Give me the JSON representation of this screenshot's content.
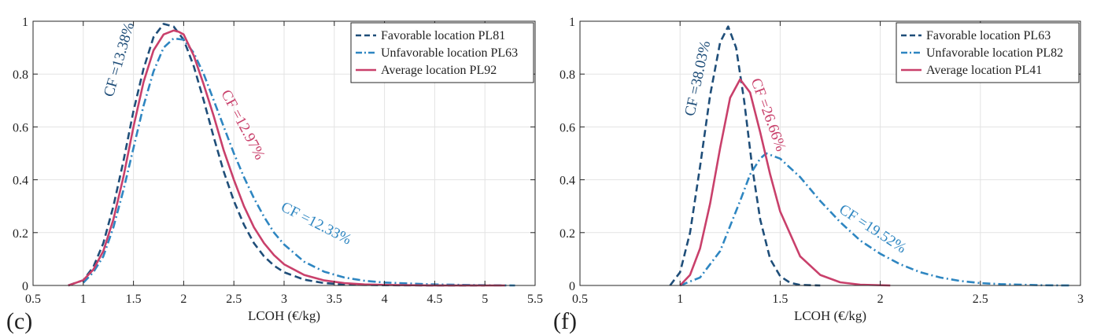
{
  "chart_data": [
    {
      "type": "line",
      "panel_label": "(c)",
      "xlabel": "LCOH (€/kg)",
      "ylabel": "",
      "xlim": [
        0.5,
        5.5
      ],
      "ylim": [
        0,
        1
      ],
      "xticks": [
        0.5,
        1,
        1.5,
        2,
        2.5,
        3,
        3.5,
        4,
        4.5,
        5,
        5.5
      ],
      "xtick_labels": [
        "0.5",
        "1",
        "1.5",
        "2",
        "2.5",
        "3",
        "3.5",
        "4",
        "4.5",
        "5",
        "5.5"
      ],
      "yticks": [
        0,
        0.2,
        0.4,
        0.6,
        0.8,
        1
      ],
      "ytick_labels": [
        "0",
        "0.2",
        "0.4",
        "0.6",
        "0.8",
        "1"
      ],
      "grid": true,
      "legend_position": "top-right",
      "series": [
        {
          "name": "Favorable location PL81",
          "color": "#1f4e79",
          "dash": "dashed",
          "x": [
            0.85,
            1.0,
            1.1,
            1.2,
            1.3,
            1.4,
            1.5,
            1.6,
            1.7,
            1.8,
            1.9,
            2.0,
            2.1,
            2.2,
            2.3,
            2.4,
            2.5,
            2.6,
            2.7,
            2.8,
            2.9,
            3.0,
            3.2,
            3.4,
            3.6,
            3.8,
            4.0,
            4.5,
            5.0
          ],
          "y": [
            0.0,
            0.02,
            0.07,
            0.16,
            0.3,
            0.47,
            0.66,
            0.82,
            0.94,
            0.99,
            0.98,
            0.93,
            0.83,
            0.7,
            0.56,
            0.43,
            0.32,
            0.23,
            0.16,
            0.11,
            0.075,
            0.05,
            0.022,
            0.009,
            0.004,
            0.002,
            0.001,
            0.0,
            0.0
          ]
        },
        {
          "name": "Unfavorable location PL63",
          "color": "#2e86c1",
          "dash": "dashdot",
          "x": [
            1.0,
            1.1,
            1.2,
            1.3,
            1.4,
            1.5,
            1.6,
            1.7,
            1.8,
            1.9,
            2.0,
            2.1,
            2.2,
            2.3,
            2.4,
            2.5,
            2.6,
            2.7,
            2.8,
            2.9,
            3.0,
            3.2,
            3.4,
            3.6,
            3.8,
            4.0,
            4.5,
            5.0,
            5.3
          ],
          "y": [
            0.01,
            0.05,
            0.11,
            0.22,
            0.36,
            0.52,
            0.68,
            0.81,
            0.9,
            0.935,
            0.93,
            0.88,
            0.8,
            0.7,
            0.6,
            0.5,
            0.41,
            0.33,
            0.26,
            0.2,
            0.155,
            0.09,
            0.052,
            0.03,
            0.018,
            0.011,
            0.004,
            0.001,
            0.0
          ]
        },
        {
          "name": "Average location PL92",
          "color": "#c9406b",
          "dash": "solid",
          "x": [
            0.85,
            1.0,
            1.1,
            1.2,
            1.3,
            1.4,
            1.5,
            1.6,
            1.7,
            1.8,
            1.9,
            1.95,
            2.0,
            2.1,
            2.2,
            2.3,
            2.4,
            2.5,
            2.6,
            2.7,
            2.8,
            2.9,
            3.0,
            3.2,
            3.4,
            3.6,
            3.8,
            4.0,
            4.5,
            5.2
          ],
          "y": [
            0.0,
            0.02,
            0.06,
            0.13,
            0.25,
            0.41,
            0.6,
            0.77,
            0.89,
            0.95,
            0.965,
            0.96,
            0.95,
            0.87,
            0.76,
            0.64,
            0.51,
            0.4,
            0.3,
            0.22,
            0.16,
            0.115,
            0.08,
            0.04,
            0.019,
            0.009,
            0.004,
            0.002,
            0.0,
            0.0
          ]
        }
      ],
      "annotations": [
        {
          "text": "CF =13.38%",
          "x": 1.4,
          "y": 0.85,
          "angle": -74,
          "color": "#1f4e79"
        },
        {
          "text": "CF =12.97%",
          "x": 2.55,
          "y": 0.6,
          "angle": 62,
          "color": "#c9406b"
        },
        {
          "text": "CF =12.33%",
          "x": 3.3,
          "y": 0.22,
          "angle": 27,
          "color": "#2e86c1"
        }
      ]
    },
    {
      "type": "line",
      "panel_label": "(f)",
      "xlabel": "LCOH (€/kg)",
      "ylabel": "",
      "xlim": [
        0.5,
        3
      ],
      "ylim": [
        0,
        1
      ],
      "xticks": [
        0.5,
        1,
        1.5,
        2,
        2.5,
        3
      ],
      "xtick_labels": [
        "0.5",
        "1",
        "1.5",
        "2",
        "2.5",
        "3"
      ],
      "yticks": [
        0,
        0.2,
        0.4,
        0.6,
        0.8,
        1
      ],
      "ytick_labels": [
        "0",
        "0.2",
        "0.4",
        "0.6",
        "0.8",
        "1"
      ],
      "grid": true,
      "legend_position": "top-right",
      "series": [
        {
          "name": "Favorable location PL63",
          "color": "#1f4e79",
          "dash": "dashed",
          "x": [
            0.95,
            1.0,
            1.05,
            1.1,
            1.15,
            1.2,
            1.24,
            1.28,
            1.32,
            1.36,
            1.4,
            1.45,
            1.5,
            1.55,
            1.6,
            1.7
          ],
          "y": [
            0.0,
            0.05,
            0.2,
            0.45,
            0.72,
            0.92,
            0.98,
            0.9,
            0.7,
            0.45,
            0.25,
            0.1,
            0.035,
            0.01,
            0.002,
            0.0
          ]
        },
        {
          "name": "Unfavorable location PL82",
          "color": "#2e86c1",
          "dash": "dashdot",
          "x": [
            1.0,
            1.1,
            1.2,
            1.3,
            1.35,
            1.4,
            1.43,
            1.5,
            1.6,
            1.7,
            1.8,
            1.9,
            2.0,
            2.1,
            2.2,
            2.3,
            2.4,
            2.5,
            2.6,
            2.8,
            2.95
          ],
          "y": [
            0.0,
            0.03,
            0.13,
            0.32,
            0.42,
            0.48,
            0.5,
            0.48,
            0.41,
            0.32,
            0.24,
            0.17,
            0.12,
            0.08,
            0.05,
            0.03,
            0.017,
            0.009,
            0.005,
            0.001,
            0.0
          ]
        },
        {
          "name": "Average location PL41",
          "color": "#c9406b",
          "dash": "solid",
          "x": [
            1.0,
            1.05,
            1.1,
            1.15,
            1.2,
            1.25,
            1.3,
            1.35,
            1.4,
            1.45,
            1.5,
            1.6,
            1.7,
            1.8,
            1.9,
            2.05
          ],
          "y": [
            0.0,
            0.04,
            0.14,
            0.31,
            0.52,
            0.71,
            0.78,
            0.73,
            0.58,
            0.42,
            0.28,
            0.11,
            0.04,
            0.012,
            0.003,
            0.0
          ]
        }
      ],
      "annotations": [
        {
          "text": "CF =38.03%",
          "x": 1.11,
          "y": 0.78,
          "angle": -78,
          "color": "#1f4e79"
        },
        {
          "text": "CF =26.66%",
          "x": 1.42,
          "y": 0.64,
          "angle": 70,
          "color": "#c9406b"
        },
        {
          "text": "CF =19.52%",
          "x": 1.95,
          "y": 0.2,
          "angle": 33,
          "color": "#2e86c1"
        }
      ]
    }
  ]
}
